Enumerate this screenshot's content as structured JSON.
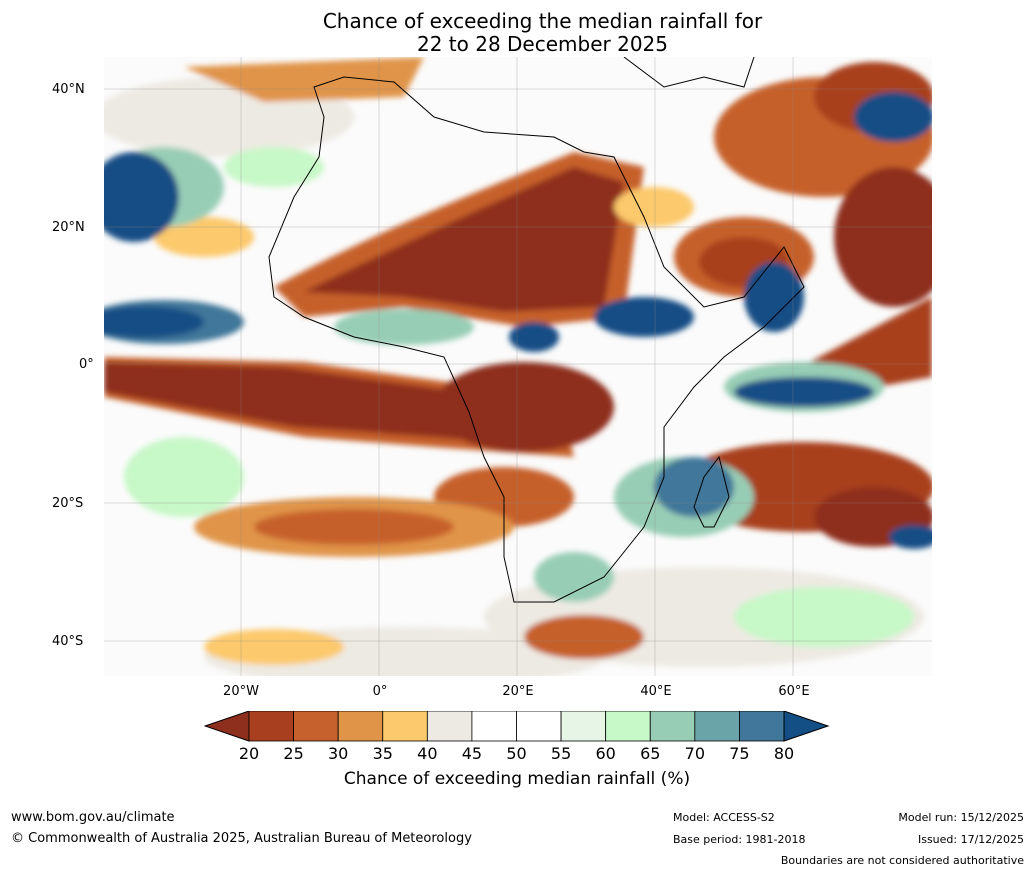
{
  "title_line1": "Chance of exceeding the median rainfall for",
  "title_line2": "22 to 28 December 2025",
  "axes": {
    "y_ticks": [
      "40°N",
      "20°N",
      "0°",
      "20°S",
      "40°S"
    ],
    "x_ticks": [
      "20°W",
      "0°",
      "20°E",
      "40°E",
      "60°E"
    ]
  },
  "colorbar": {
    "label": "Chance of exceeding median rainfall (%)",
    "ticks": [
      "20",
      "25",
      "30",
      "35",
      "40",
      "45",
      "50",
      "55",
      "60",
      "65",
      "70",
      "75",
      "80"
    ],
    "colors": {
      "below_20": "#8e2f1d",
      "20-25": "#a8401f",
      "25-30": "#c6602c",
      "30-35": "#e09448",
      "35-40": "#fcc96c",
      "40-45": "#edeae3",
      "45-50": "#ffffff",
      "50-55": "#ffffff",
      "55-60": "#e6f5e6",
      "60-65": "#c7f8c7",
      "65-70": "#98cdb5",
      "70-75": "#6aa4a8",
      "75-80": "#41779a",
      "above_80": "#134e85"
    }
  },
  "footer": {
    "website": "www.bom.gov.au/climate",
    "copyright": "© Commonwealth of Australia 2025, Australian Bureau of Meteorology",
    "model": "Model: ACCESS-S2",
    "base_period": "Base period: 1981-2018",
    "model_run": "Model run: 15/12/2025",
    "issued": "Issued: 17/12/2025",
    "disclaimer": "Boundaries are not considered authoritative"
  }
}
